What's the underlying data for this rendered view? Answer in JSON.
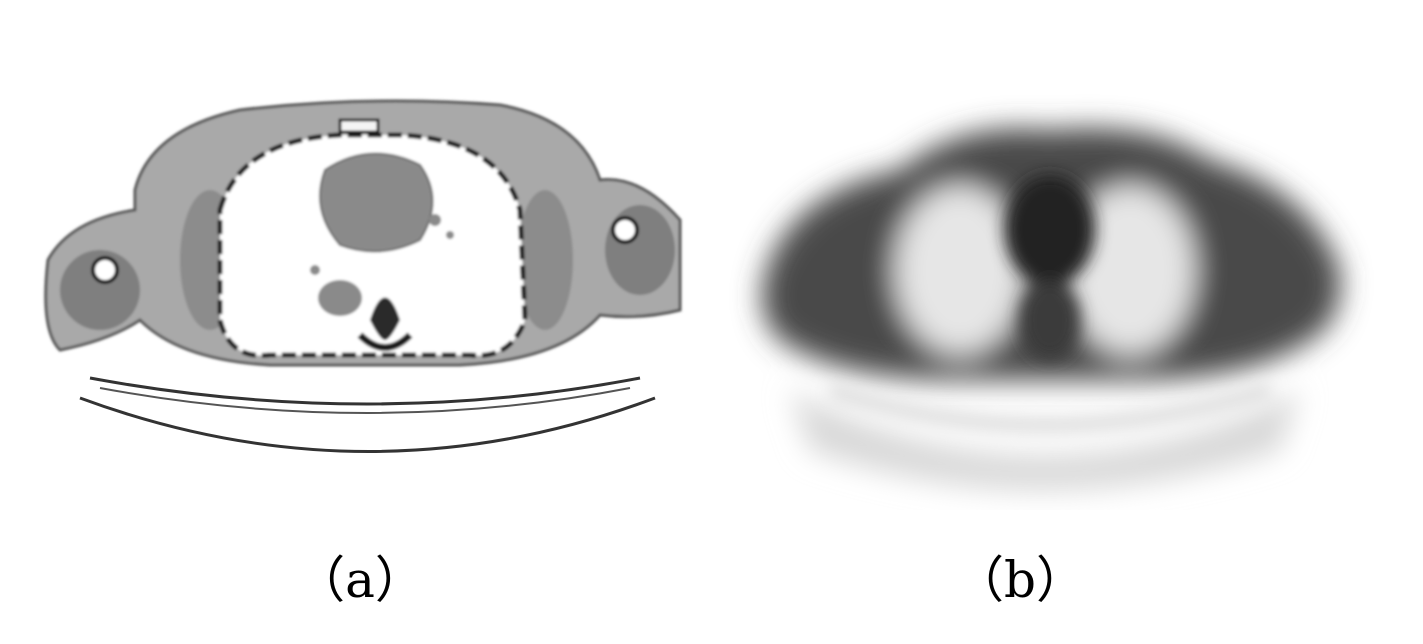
{
  "panels": [
    {
      "caption": "（a）",
      "image_kind": "ct-scan-axial-chest",
      "colors": {
        "tissue": "#a9a9a9",
        "tissue_dark": "#7f7f7f",
        "heart": "#8a8a8a",
        "bone": "#2a2a2a",
        "lung": "#ffffff",
        "outline": "#444444"
      }
    },
    {
      "caption": "（b）",
      "image_kind": "pet-scan-axial-chest",
      "colors": {
        "dense": "#3a3a3a",
        "mid": "#7a7a7a",
        "light": "#d8d8d8"
      }
    }
  ]
}
